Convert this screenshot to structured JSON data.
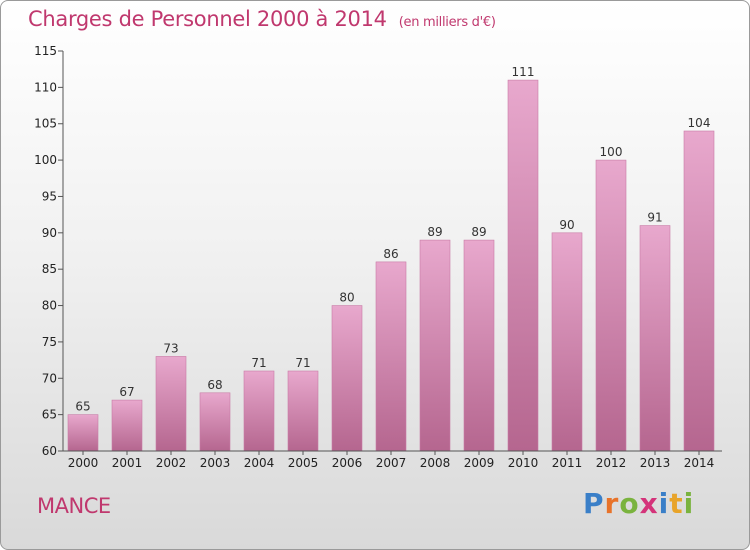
{
  "header": {
    "title": "Charges de Personnel 2000 à 2014",
    "subtitle": "(en milliers d'€)"
  },
  "footer": {
    "place": "MANCE",
    "logo_letters": [
      "P",
      "r",
      "o",
      "x",
      "i",
      "t",
      "i"
    ],
    "logo_colors": [
      "#3a7fc8",
      "#e8732a",
      "#7ab33e",
      "#d4337a",
      "#3a7fc8",
      "#e8a42a",
      "#7ab33e"
    ]
  },
  "colors": {
    "bar_top": "#e8a8cd",
    "bar_bottom": "#b5668f",
    "bar_edge": "#c97ba6",
    "title": "#c0386e"
  },
  "chart_data": {
    "type": "bar",
    "title": "Charges de Personnel 2000 à 2014",
    "subtitle": "(en milliers d'€)",
    "categories": [
      "2000",
      "2001",
      "2002",
      "2003",
      "2004",
      "2005",
      "2006",
      "2007",
      "2008",
      "2009",
      "2010",
      "2011",
      "2012",
      "2013",
      "2014"
    ],
    "values": [
      65,
      67,
      73,
      68,
      71,
      71,
      80,
      86,
      89,
      89,
      111,
      90,
      100,
      91,
      104
    ],
    "value_labels": [
      "65",
      "67",
      "73",
      "68",
      "71",
      "71",
      "80",
      "86",
      "89",
      "89",
      "111",
      "90",
      "100",
      "91",
      "104"
    ],
    "ylim": [
      60,
      115
    ],
    "yticks": [
      60,
      65,
      70,
      75,
      80,
      85,
      90,
      95,
      100,
      105,
      110,
      115
    ],
    "ytick_labels": [
      "60",
      "65",
      "70",
      "75",
      "80",
      "85",
      "90",
      "95",
      "100",
      "105",
      "110",
      "115"
    ],
    "grid": false,
    "legend": "none",
    "xlabel": "",
    "ylabel": ""
  }
}
